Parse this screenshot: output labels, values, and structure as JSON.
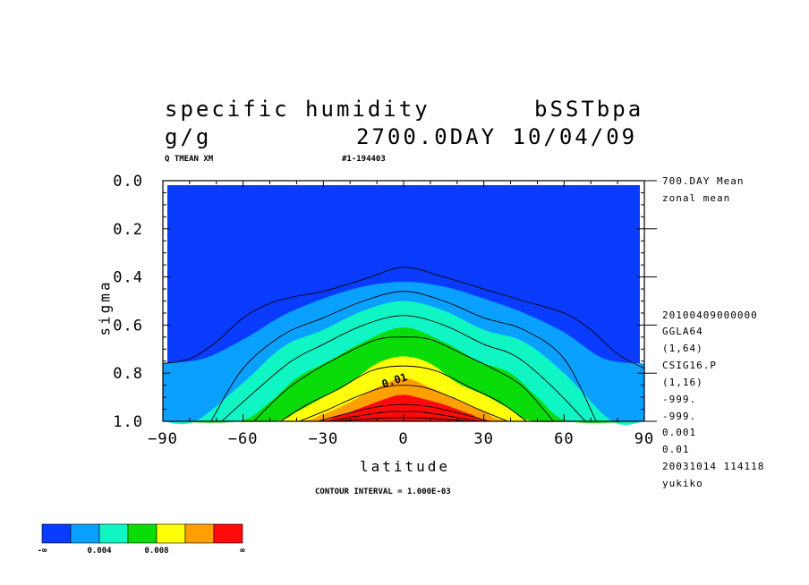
{
  "chart_data": {
    "type": "contour",
    "title_left": "specific humidity",
    "units": "g/g",
    "title_right": "bSSTbpa",
    "date_line": "2700.0DAY 10/04/09",
    "var_tag": "Q TMEAN XM",
    "run_tag": "#1-194403",
    "xlabel": "latitude",
    "ylabel": "sigma",
    "xlim": [
      -90,
      90
    ],
    "ylim": [
      1.0,
      0.0
    ],
    "xticks": [
      -90,
      -60,
      -30,
      0,
      30,
      60,
      90
    ],
    "xtick_labels": [
      "−90",
      "−60",
      "−30",
      "0",
      "30",
      "60",
      "90"
    ],
    "yticks": [
      0.0,
      0.2,
      0.4,
      0.6,
      0.8,
      1.0
    ],
    "ytick_labels": [
      "0.0",
      "0.2",
      "0.4",
      "0.6",
      "0.8",
      "1.0"
    ],
    "contour_label": "0.01",
    "contour_interval": "CONTOUR INTERVAL = 1.000E-03",
    "side_info": [
      "700.DAY Mean",
      "zonal mean",
      "20100409000000",
      "GGLA64",
      "(1,64)",
      "CSIG16.P",
      "(1,16)",
      "-999.",
      "-999.",
      "0.001",
      "0.01",
      "20031014 114118",
      "yukiko"
    ],
    "colorbar": {
      "colors": [
        "#0a3cff",
        "#0aa0ff",
        "#10f5c4",
        "#0adc0a",
        "#ffff0a",
        "#ffa000",
        "#ff0a0a"
      ],
      "labels": [
        "-∞",
        "0.004",
        "0.008",
        "∞"
      ]
    },
    "fill_levels": [
      {
        "level": 0.001,
        "color": "#0aa0ff",
        "profile": [
          [
            -90,
            0.76
          ],
          [
            -75,
            0.74
          ],
          [
            -60,
            0.66
          ],
          [
            -45,
            0.56
          ],
          [
            -30,
            0.49
          ],
          [
            -15,
            0.44
          ],
          [
            0,
            0.42
          ],
          [
            15,
            0.44
          ],
          [
            30,
            0.49
          ],
          [
            45,
            0.55
          ],
          [
            60,
            0.63
          ],
          [
            75,
            0.74
          ],
          [
            90,
            0.76
          ]
        ]
      },
      {
        "level": 0.003,
        "color": "#10f5c4",
        "profile": [
          [
            -90,
            1.0
          ],
          [
            -78,
            1.0
          ],
          [
            -60,
            0.84
          ],
          [
            -45,
            0.69
          ],
          [
            -30,
            0.62
          ],
          [
            -15,
            0.54
          ],
          [
            0,
            0.5
          ],
          [
            15,
            0.54
          ],
          [
            30,
            0.62
          ],
          [
            45,
            0.67
          ],
          [
            60,
            0.8
          ],
          [
            78,
            1.0
          ],
          [
            90,
            1.0
          ]
        ]
      },
      {
        "level": 0.005,
        "color": "#0adc0a",
        "profile": [
          [
            -90,
            1.0
          ],
          [
            -62,
            1.0
          ],
          [
            -50,
            0.92
          ],
          [
            -40,
            0.82
          ],
          [
            -28,
            0.75
          ],
          [
            -15,
            0.67
          ],
          [
            0,
            0.61
          ],
          [
            15,
            0.67
          ],
          [
            28,
            0.75
          ],
          [
            40,
            0.8
          ],
          [
            50,
            0.9
          ],
          [
            62,
            1.0
          ],
          [
            90,
            1.0
          ]
        ]
      },
      {
        "level": 0.007,
        "color": "#ffff0a",
        "profile": [
          [
            -90,
            1.0
          ],
          [
            -50,
            1.0
          ],
          [
            -40,
            0.96
          ],
          [
            -30,
            0.9
          ],
          [
            -20,
            0.84
          ],
          [
            -10,
            0.76
          ],
          [
            0,
            0.73
          ],
          [
            10,
            0.76
          ],
          [
            20,
            0.84
          ],
          [
            30,
            0.89
          ],
          [
            40,
            0.95
          ],
          [
            50,
            1.0
          ],
          [
            90,
            1.0
          ]
        ]
      },
      {
        "level": 0.009,
        "color": "#ffa000",
        "profile": [
          [
            -90,
            1.0
          ],
          [
            -42,
            1.0
          ],
          [
            -30,
            0.97
          ],
          [
            -20,
            0.92
          ],
          [
            -10,
            0.86
          ],
          [
            0,
            0.82
          ],
          [
            10,
            0.86
          ],
          [
            20,
            0.91
          ],
          [
            30,
            0.96
          ],
          [
            42,
            1.0
          ],
          [
            90,
            1.0
          ]
        ]
      },
      {
        "level": 0.011,
        "color": "#ff0a0a",
        "profile": [
          [
            -90,
            1.0
          ],
          [
            -36,
            1.0
          ],
          [
            -25,
            0.98
          ],
          [
            -15,
            0.94
          ],
          [
            -5,
            0.9
          ],
          [
            0,
            0.89
          ],
          [
            5,
            0.9
          ],
          [
            15,
            0.93
          ],
          [
            25,
            0.97
          ],
          [
            36,
            1.0
          ],
          [
            90,
            1.0
          ]
        ]
      }
    ],
    "line_levels": [
      {
        "level": 0.0005,
        "profile": [
          [
            -90,
            0.76
          ],
          [
            -80,
            0.74
          ],
          [
            -70,
            0.67
          ],
          [
            -60,
            0.57
          ],
          [
            -50,
            0.51
          ],
          [
            -40,
            0.48
          ],
          [
            -30,
            0.46
          ],
          [
            -15,
            0.41
          ],
          [
            0,
            0.36
          ],
          [
            15,
            0.4
          ],
          [
            30,
            0.45
          ],
          [
            45,
            0.5
          ],
          [
            60,
            0.55
          ],
          [
            70,
            0.62
          ],
          [
            80,
            0.72
          ],
          [
            90,
            0.78
          ]
        ]
      },
      {
        "level": 0.002,
        "profile": [
          [
            -72,
            1.0
          ],
          [
            -60,
            0.78
          ],
          [
            -45,
            0.64
          ],
          [
            -30,
            0.57
          ],
          [
            -15,
            0.5
          ],
          [
            0,
            0.46
          ],
          [
            15,
            0.5
          ],
          [
            30,
            0.57
          ],
          [
            45,
            0.62
          ],
          [
            60,
            0.74
          ],
          [
            72,
            1.0
          ]
        ]
      },
      {
        "level": 0.004,
        "profile": [
          [
            -68,
            1.0
          ],
          [
            -55,
            0.87
          ],
          [
            -42,
            0.75
          ],
          [
            -30,
            0.68
          ],
          [
            -15,
            0.6
          ],
          [
            0,
            0.56
          ],
          [
            15,
            0.6
          ],
          [
            30,
            0.68
          ],
          [
            42,
            0.73
          ],
          [
            55,
            0.85
          ],
          [
            68,
            1.0
          ]
        ]
      },
      {
        "level": 0.006,
        "profile": [
          [
            -56,
            1.0
          ],
          [
            -45,
            0.88
          ],
          [
            -35,
            0.8
          ],
          [
            -22,
            0.72
          ],
          [
            -10,
            0.66
          ],
          [
            0,
            0.65
          ],
          [
            10,
            0.66
          ],
          [
            22,
            0.72
          ],
          [
            35,
            0.79
          ],
          [
            45,
            0.86
          ],
          [
            56,
            1.0
          ]
        ]
      },
      {
        "level": 0.008,
        "profile": [
          [
            -46,
            1.0
          ],
          [
            -36,
            0.93
          ],
          [
            -25,
            0.87
          ],
          [
            -12,
            0.79
          ],
          [
            0,
            0.77
          ],
          [
            12,
            0.79
          ],
          [
            25,
            0.86
          ],
          [
            36,
            0.92
          ],
          [
            46,
            1.0
          ]
        ]
      },
      {
        "level": 0.01,
        "profile": [
          [
            -39,
            1.0
          ],
          [
            -28,
            0.95
          ],
          [
            -18,
            0.9
          ],
          [
            -8,
            0.86
          ],
          [
            0,
            0.85
          ],
          [
            8,
            0.86
          ],
          [
            18,
            0.9
          ],
          [
            28,
            0.95
          ],
          [
            39,
            1.0
          ]
        ]
      },
      {
        "level": 0.012,
        "profile": [
          [
            -32,
            1.0
          ],
          [
            -22,
            0.97
          ],
          [
            -10,
            0.94
          ],
          [
            0,
            0.93
          ],
          [
            10,
            0.94
          ],
          [
            22,
            0.97
          ],
          [
            32,
            1.0
          ]
        ]
      },
      {
        "level": 0.013,
        "profile": [
          [
            -28,
            1.0
          ],
          [
            -18,
            0.98
          ],
          [
            -6,
            0.96
          ],
          [
            0,
            0.96
          ],
          [
            6,
            0.96
          ],
          [
            18,
            0.98
          ],
          [
            28,
            1.0
          ]
        ]
      },
      {
        "level": 0.014,
        "profile": [
          [
            -25,
            1.0
          ],
          [
            -14,
            0.99
          ],
          [
            0,
            0.985
          ],
          [
            14,
            0.99
          ],
          [
            25,
            1.0
          ]
        ]
      }
    ]
  }
}
